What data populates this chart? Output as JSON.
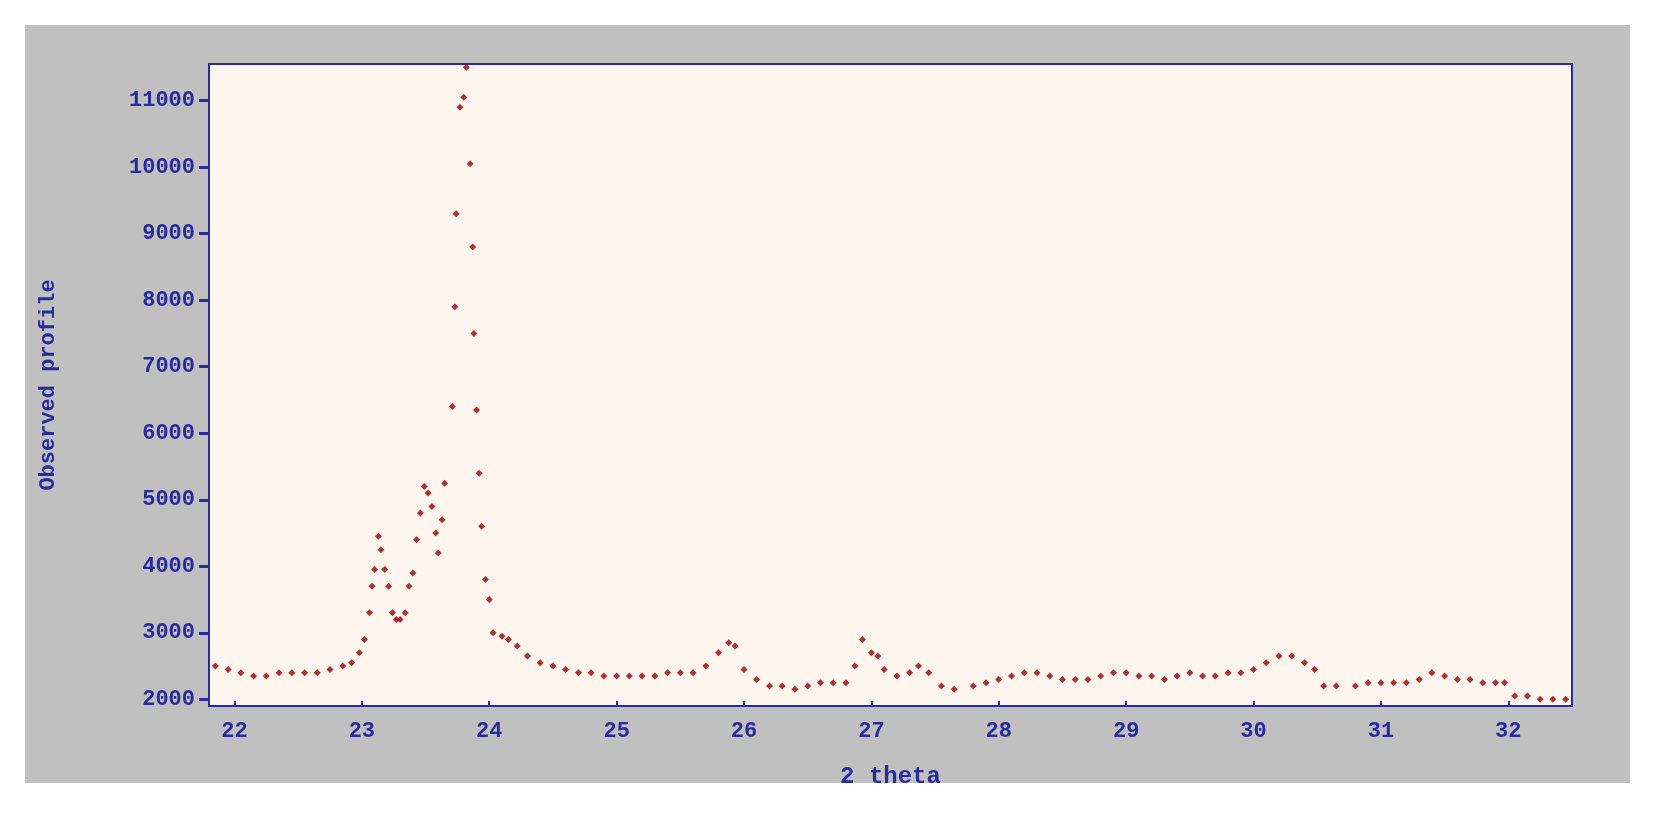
{
  "chart_data": {
    "type": "scatter",
    "xlabel": "2 theta",
    "ylabel": "Observed profile",
    "marker": "diamond",
    "xlim": [
      21.8,
      32.5
    ],
    "ylim": [
      1900,
      11550
    ],
    "xticks": [
      22,
      23,
      24,
      25,
      26,
      27,
      28,
      29,
      30,
      31,
      32
    ],
    "yticks": [
      2000,
      3000,
      4000,
      5000,
      6000,
      7000,
      8000,
      9000,
      10000,
      11000
    ],
    "series": [
      {
        "color": "#990000",
        "x": [
          21.85,
          21.95,
          22.05,
          22.15,
          22.25,
          22.35,
          22.45,
          22.55,
          22.65,
          22.75,
          22.85,
          22.92,
          22.98,
          23.02,
          23.06,
          23.08,
          23.1,
          23.13,
          23.15,
          23.18,
          23.21,
          23.24,
          23.27,
          23.3,
          23.34,
          23.37,
          23.4,
          23.43,
          23.46,
          23.49,
          23.52,
          23.55,
          23.58,
          23.6,
          23.63,
          23.65,
          23.71,
          23.73,
          23.74,
          23.77,
          23.8,
          23.82,
          23.85,
          23.87,
          23.88,
          23.9,
          23.92,
          23.94,
          23.97,
          24.0,
          24.03,
          24.1,
          24.15,
          24.22,
          24.3,
          24.4,
          24.5,
          24.6,
          24.7,
          24.8,
          24.9,
          25.0,
          25.1,
          25.2,
          25.3,
          25.4,
          25.5,
          25.6,
          25.7,
          25.8,
          25.88,
          25.93,
          26.0,
          26.1,
          26.2,
          26.3,
          26.4,
          26.5,
          26.6,
          26.7,
          26.8,
          26.87,
          26.93,
          27.0,
          27.05,
          27.1,
          27.2,
          27.3,
          27.37,
          27.45,
          27.55,
          27.65,
          27.8,
          27.9,
          28.0,
          28.1,
          28.2,
          28.3,
          28.4,
          28.5,
          28.6,
          28.7,
          28.8,
          28.9,
          29.0,
          29.1,
          29.2,
          29.3,
          29.4,
          29.5,
          29.6,
          29.7,
          29.8,
          29.9,
          30.0,
          30.1,
          30.2,
          30.3,
          30.4,
          30.48,
          30.55,
          30.65,
          30.8,
          30.9,
          31.0,
          31.1,
          31.2,
          31.3,
          31.4,
          31.5,
          31.6,
          31.7,
          31.8,
          31.9,
          31.97,
          32.05,
          32.15,
          32.25,
          32.35,
          32.45
        ],
        "values": [
          2500,
          2450,
          2400,
          2350,
          2350,
          2400,
          2400,
          2400,
          2400,
          2450,
          2500,
          2550,
          2700,
          2900,
          3300,
          3700,
          3950,
          4450,
          4250,
          3950,
          3700,
          3300,
          3200,
          3200,
          3300,
          3700,
          3900,
          4400,
          4800,
          5200,
          5100,
          4900,
          4500,
          4200,
          4700,
          5250,
          6400,
          7900,
          9300,
          10900,
          11050,
          11500,
          10050,
          8800,
          7500,
          6350,
          5400,
          4600,
          3800,
          3500,
          3000,
          2950,
          2900,
          2800,
          2650,
          2550,
          2500,
          2450,
          2400,
          2400,
          2350,
          2350,
          2350,
          2350,
          2350,
          2400,
          2400,
          2400,
          2500,
          2700,
          2850,
          2800,
          2450,
          2300,
          2200,
          2200,
          2150,
          2200,
          2250,
          2250,
          2250,
          2500,
          2900,
          2700,
          2650,
          2450,
          2350,
          2400,
          2500,
          2400,
          2200,
          2150,
          2200,
          2250,
          2300,
          2350,
          2400,
          2400,
          2350,
          2300,
          2300,
          2300,
          2350,
          2400,
          2400,
          2350,
          2350,
          2300,
          2350,
          2400,
          2350,
          2350,
          2400,
          2400,
          2450,
          2550,
          2650,
          2650,
          2550,
          2450,
          2200,
          2200,
          2200,
          2250,
          2250,
          2250,
          2250,
          2300,
          2400,
          2350,
          2300,
          2300,
          2250,
          2250,
          2250,
          2050,
          2050,
          2000,
          2000,
          2000
        ]
      }
    ]
  }
}
